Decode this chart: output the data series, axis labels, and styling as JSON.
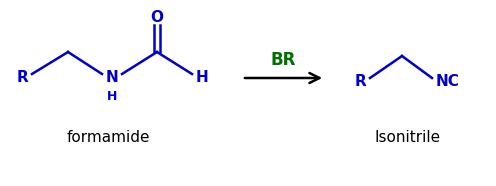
{
  "bg_color": "#ffffff",
  "blue": "#0000cc",
  "green": "#007000",
  "black": "#000000",
  "arrow_label": "BR",
  "left_label": "formamide",
  "right_label": "Isonitrile",
  "figsize": [
    4.96,
    1.86
  ],
  "dpi": 100,
  "lw": 1.8,
  "fontsize_struct": 11,
  "fontsize_sub": 9,
  "fontsize_label": 11
}
